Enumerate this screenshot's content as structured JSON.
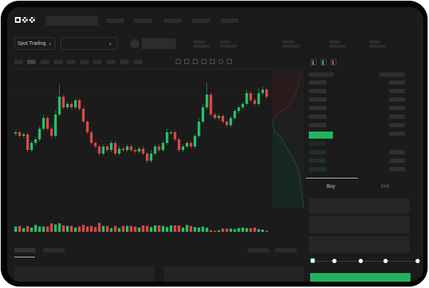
{
  "header": {
    "logo_text": "OKX"
  },
  "market_select": {
    "label": "Spot Trading",
    "chevron": "chevron-down-icon"
  },
  "pair_select": {
    "value": "",
    "chevron": "chevron-down-icon"
  },
  "trade_tabs": {
    "buy": "Buy",
    "sell": "Sell"
  },
  "colors": {
    "up": "#27c26a",
    "down": "#e04848",
    "accent": "#22b35e",
    "background": "#1b1b1b"
  },
  "slider": {
    "value": 0,
    "steps": [
      0,
      25,
      50,
      75,
      100
    ]
  },
  "chart_data": {
    "type": "candlestick",
    "open": [
      113,
      115,
      110,
      112,
      90,
      100,
      105,
      120,
      135,
      120,
      110,
      140,
      165,
      150,
      155,
      150,
      160,
      148,
      130,
      115,
      100,
      95,
      85,
      95,
      90,
      100,
      85,
      92,
      90,
      95,
      90,
      88,
      92,
      85,
      75,
      85,
      95,
      90,
      100,
      115,
      115,
      105,
      90,
      95,
      100,
      95,
      110,
      130,
      150,
      168,
      140,
      135,
      138,
      130,
      125,
      135,
      145,
      150,
      155,
      170,
      160,
      155,
      170,
      175
    ],
    "high": [
      118,
      118,
      115,
      115,
      103,
      108,
      123,
      140,
      138,
      123,
      146,
      182,
      168,
      158,
      158,
      163,
      163,
      151,
      133,
      118,
      103,
      98,
      98,
      98,
      103,
      103,
      96,
      95,
      98,
      98,
      93,
      95,
      96,
      88,
      90,
      98,
      98,
      103,
      120,
      118,
      118,
      108,
      98,
      103,
      103,
      113,
      135,
      155,
      185,
      171,
      143,
      141,
      141,
      133,
      138,
      148,
      153,
      158,
      175,
      173,
      163,
      178,
      180,
      178
    ],
    "low": [
      110,
      107,
      107,
      87,
      87,
      97,
      102,
      117,
      117,
      107,
      107,
      137,
      147,
      147,
      147,
      147,
      145,
      127,
      112,
      97,
      92,
      82,
      82,
      87,
      87,
      82,
      82,
      87,
      87,
      87,
      85,
      85,
      82,
      72,
      72,
      82,
      87,
      87,
      97,
      112,
      102,
      87,
      87,
      92,
      92,
      92,
      107,
      127,
      147,
      137,
      132,
      132,
      127,
      122,
      122,
      132,
      142,
      147,
      152,
      157,
      152,
      152,
      167,
      162
    ],
    "close": [
      115,
      110,
      112,
      90,
      100,
      105,
      120,
      135,
      120,
      110,
      140,
      165,
      150,
      155,
      150,
      160,
      148,
      130,
      115,
      100,
      95,
      85,
      95,
      90,
      100,
      85,
      92,
      90,
      95,
      90,
      88,
      92,
      85,
      75,
      85,
      95,
      90,
      100,
      115,
      115,
      105,
      90,
      95,
      100,
      95,
      110,
      130,
      150,
      168,
      140,
      135,
      138,
      130,
      125,
      135,
      145,
      150,
      155,
      170,
      160,
      155,
      170,
      175,
      165
    ],
    "volume": [
      10,
      11,
      7,
      11,
      8,
      13,
      10,
      10,
      10,
      16,
      14,
      16,
      12,
      11,
      11,
      8,
      10,
      13,
      10,
      11,
      9,
      17,
      11,
      11,
      7,
      11,
      7,
      11,
      11,
      11,
      10,
      8,
      12,
      11,
      9,
      12,
      12,
      11,
      9,
      12,
      12,
      12,
      8,
      13,
      11,
      9,
      8,
      10,
      8,
      3,
      2,
      3,
      6,
      6,
      6,
      5,
      7,
      8,
      7,
      7,
      8,
      5,
      4,
      2
    ]
  }
}
